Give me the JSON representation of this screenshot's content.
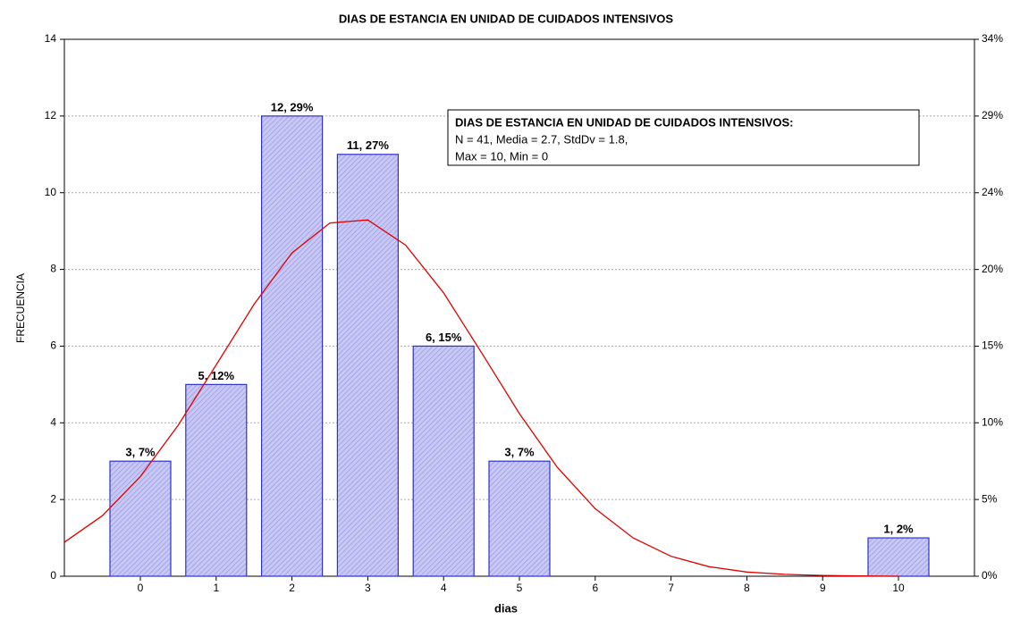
{
  "chart_data": {
    "type": "bar",
    "title": "DIAS DE ESTANCIA EN UNIDAD DE CUIDADOS INTENSIVOS",
    "xlabel": "dias",
    "ylabel": "FRECUENCIA",
    "categories": [
      "0",
      "1",
      "2",
      "3",
      "4",
      "5",
      "6",
      "7",
      "8",
      "9",
      "10"
    ],
    "values": [
      3,
      5,
      12,
      11,
      6,
      3,
      0,
      0,
      0,
      0,
      1
    ],
    "value_labels": [
      "3, 7%",
      "5, 12%",
      "12, 29%",
      "11, 27%",
      "6, 15%",
      "3, 7%",
      null,
      null,
      null,
      null,
      "1, 2%"
    ],
    "color": "#3030d0",
    "ylim": [
      0,
      14
    ],
    "yticks": [
      0,
      2,
      4,
      6,
      8,
      10,
      12,
      14
    ],
    "y2lim": [
      0,
      34.15
    ],
    "y2ticks": [
      {
        "value": 0,
        "label": "0%"
      },
      {
        "value": 4.88,
        "label": "5%"
      },
      {
        "value": 9.76,
        "label": "10%"
      },
      {
        "value": 14.63,
        "label": "15%"
      },
      {
        "value": 19.51,
        "label": "20%"
      },
      {
        "value": 24.39,
        "label": "24%"
      },
      {
        "value": 29.27,
        "label": "29%"
      },
      {
        "value": 34.15,
        "label": "34%"
      }
    ],
    "grid": true,
    "curve": {
      "color": "#e00000",
      "x": [
        -1,
        -0.5,
        0,
        0.5,
        1,
        1.5,
        2,
        2.5,
        3,
        3.5,
        4,
        4.5,
        5,
        5.5,
        6,
        6.5,
        7,
        7.5,
        8,
        8.5,
        9,
        9.5,
        10
      ],
      "y": [
        0.89,
        1.58,
        2.6,
        3.94,
        5.51,
        7.09,
        8.43,
        9.21,
        9.29,
        8.63,
        7.39,
        5.83,
        4.24,
        2.84,
        1.76,
        1.0,
        0.52,
        0.25,
        0.11,
        0.05,
        0.02,
        0.01,
        0
      ]
    },
    "stats_box": [
      "DIAS DE ESTANCIA EN UNIDAD DE CUIDADOS INTENSIVOS:",
      "N = 41, Media = 2.7, StdDv = 1.8,",
      "Max = 10, Min = 0"
    ]
  }
}
